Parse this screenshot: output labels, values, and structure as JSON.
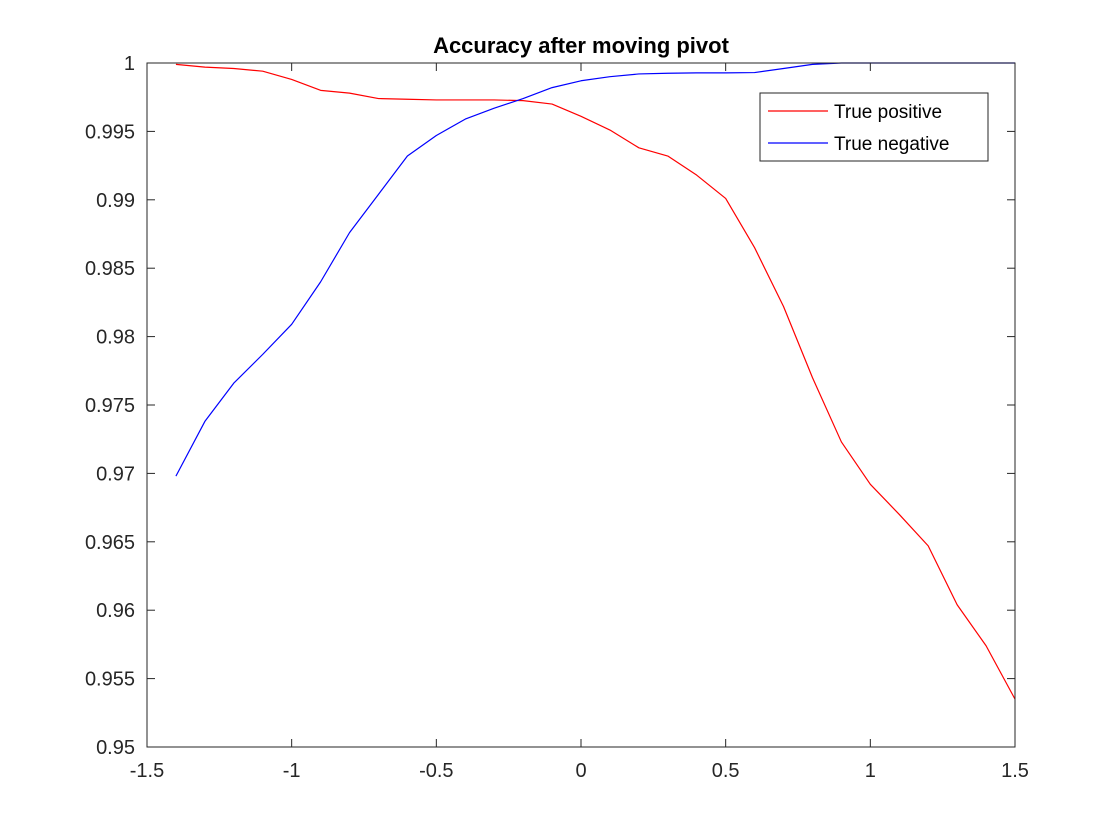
{
  "chart_data": {
    "type": "line",
    "title": "Accuracy after moving pivot",
    "xlabel": "",
    "ylabel": "",
    "xlim": [
      -1.5,
      1.5
    ],
    "ylim": [
      0.95,
      1
    ],
    "grid": false,
    "legend_position": "top-right",
    "x_ticks": [
      -1.5,
      -1,
      -0.5,
      0,
      0.5,
      1,
      1.5
    ],
    "x_tick_labels": [
      "-1.5",
      "-1",
      "-0.5",
      "0",
      "0.5",
      "1",
      "1.5"
    ],
    "y_ticks": [
      0.95,
      0.955,
      0.96,
      0.965,
      0.97,
      0.975,
      0.98,
      0.985,
      0.99,
      0.995,
      1
    ],
    "y_tick_labels": [
      "0.95",
      "0.955",
      "0.96",
      "0.965",
      "0.97",
      "0.975",
      "0.98",
      "0.985",
      "0.99",
      "0.995",
      "1"
    ],
    "x": [
      -1.4,
      -1.3,
      -1.2,
      -1.1,
      -1.0,
      -0.9,
      -0.8,
      -0.7,
      -0.6,
      -0.5,
      -0.4,
      -0.3,
      -0.2,
      -0.1,
      0.0,
      0.1,
      0.2,
      0.3,
      0.4,
      0.5,
      0.6,
      0.7,
      0.8,
      0.9,
      1.0,
      1.1,
      1.2,
      1.3,
      1.4,
      1.5
    ],
    "series": [
      {
        "name": "True positive",
        "color": "#ff0000",
        "values": [
          0.9999,
          0.9997,
          0.9996,
          0.9994,
          0.9988,
          0.998,
          0.9978,
          0.9974,
          0.99735,
          0.9973,
          0.9973,
          0.9973,
          0.99725,
          0.997,
          0.9961,
          0.9951,
          0.9938,
          0.9932,
          0.9918,
          0.9901,
          0.9865,
          0.9822,
          0.977,
          0.9723,
          0.9692,
          0.967,
          0.9647,
          0.9604,
          0.9574,
          0.9535
        ]
      },
      {
        "name": "True negative",
        "color": "#0000ff",
        "values": [
          0.9698,
          0.9738,
          0.9766,
          0.9787,
          0.9809,
          0.984,
          0.9876,
          0.9904,
          0.9932,
          0.9947,
          0.9959,
          0.9967,
          0.9974,
          0.9982,
          0.9987,
          0.999,
          0.9992,
          0.99925,
          0.99928,
          0.99928,
          0.9993,
          0.9996,
          0.9999,
          1.0,
          1.0,
          1.0,
          1.0,
          1.0,
          1.0,
          1.0
        ]
      }
    ]
  }
}
